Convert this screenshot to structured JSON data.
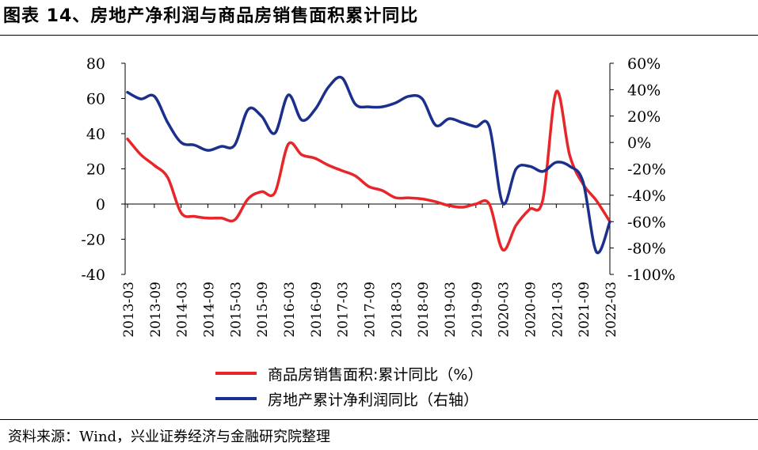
{
  "title": "图表 14、房地产净利润与商品房销售面积累计同比",
  "source": "资料来源：Wind，兴业证券经济与金融研究院整理",
  "chart_data": {
    "type": "line",
    "x": [
      "2013-03",
      "2013-06",
      "2013-09",
      "2013-12",
      "2014-03",
      "2014-06",
      "2014-09",
      "2014-12",
      "2015-03",
      "2015-06",
      "2015-09",
      "2015-12",
      "2016-03",
      "2016-06",
      "2016-09",
      "2016-12",
      "2017-03",
      "2017-06",
      "2017-09",
      "2017-12",
      "2018-03",
      "2018-06",
      "2018-09",
      "2018-12",
      "2019-03",
      "2019-06",
      "2019-09",
      "2019-12",
      "2020-03",
      "2020-06",
      "2020-09",
      "2020-12",
      "2021-03",
      "2021-06",
      "2021-09",
      "2021-12",
      "2022-03"
    ],
    "x_tick_labels": [
      "2013-03",
      "2013-09",
      "2014-03",
      "2014-09",
      "2015-03",
      "2015-09",
      "2016-03",
      "2016-09",
      "2017-03",
      "2017-09",
      "2018-03",
      "2018-09",
      "2019-03",
      "2019-09",
      "2020-03",
      "2020-09",
      "2021-03",
      "2021-09",
      "2022-03"
    ],
    "y_left": {
      "ticks": [
        "80",
        "60",
        "40",
        "20",
        "0",
        "-20",
        "-40"
      ],
      "range": [
        -40,
        80
      ]
    },
    "y_right": {
      "ticks": [
        "60%",
        "40%",
        "20%",
        "0%",
        "-20%",
        "-40%",
        "-60%",
        "-80%",
        "-100%"
      ],
      "range": [
        -100,
        60
      ]
    },
    "series": [
      {
        "name": "商品房销售面积:累计同比（%）",
        "axis": "left",
        "color": "#e8262a",
        "values": [
          37,
          28,
          22,
          15,
          -5,
          -7,
          -8,
          -8,
          -9,
          3,
          7,
          6.5,
          34,
          28,
          26,
          22,
          19,
          16,
          10,
          7.7,
          3.6,
          3.5,
          2.9,
          1.3,
          -0.9,
          -1.8,
          0,
          0,
          -26,
          -12,
          -3,
          2.6,
          63.8,
          27.7,
          11.3,
          1.9,
          -10
        ]
      },
      {
        "name": "房地产累计净利润同比（右轴）",
        "axis": "right",
        "color": "#1b2f8c",
        "values": [
          38,
          33,
          35,
          15,
          0,
          -2,
          -6,
          -3,
          -2,
          25,
          20,
          7,
          36,
          17,
          25,
          42,
          49,
          29,
          27,
          27,
          30,
          35,
          33,
          13,
          18,
          15,
          12,
          12,
          -46,
          -20,
          -18,
          -22,
          -15,
          -18,
          -30,
          -83,
          -60
        ]
      }
    ],
    "legend_position": "bottom",
    "grid": false
  }
}
